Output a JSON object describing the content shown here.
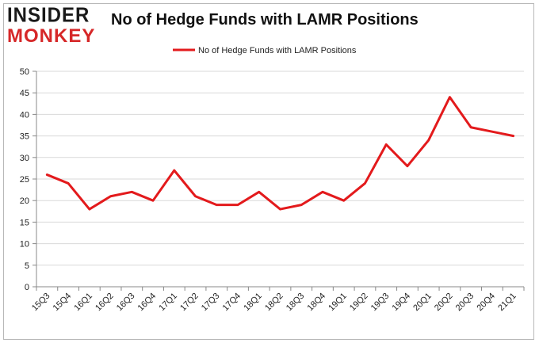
{
  "brand": {
    "line1": "INSIDER",
    "line2": "MONKEY"
  },
  "chart_data": {
    "type": "line",
    "title": "No of Hedge Funds with LAMR Positions",
    "categories": [
      "15Q3",
      "15Q4",
      "16Q1",
      "16Q2",
      "16Q3",
      "16Q4",
      "17Q1",
      "17Q2",
      "17Q3",
      "17Q4",
      "18Q1",
      "18Q2",
      "18Q3",
      "18Q4",
      "19Q1",
      "19Q2",
      "19Q3",
      "19Q4",
      "20Q1",
      "20Q2",
      "20Q3",
      "20Q4",
      "21Q1"
    ],
    "series": [
      {
        "name": "No of Hedge Funds with LAMR Positions",
        "color": "#e31a1c",
        "values": [
          26,
          24,
          18,
          21,
          22,
          20,
          27,
          21,
          19,
          19,
          22,
          18,
          19,
          22,
          20,
          24,
          33,
          28,
          34,
          44,
          37,
          36,
          35
        ]
      }
    ],
    "ylim": [
      0,
      50
    ],
    "yticks": [
      0,
      5,
      10,
      15,
      20,
      25,
      30,
      35,
      40,
      45,
      50
    ],
    "xlabel": "",
    "ylabel": "",
    "grid": "horizontal",
    "legend": "top-center"
  }
}
